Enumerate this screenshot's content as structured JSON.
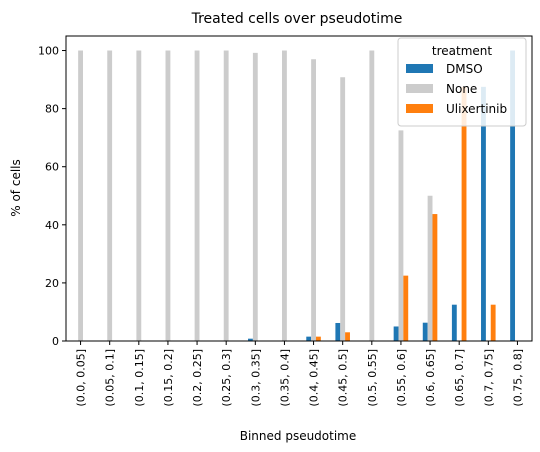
{
  "chart_data": {
    "type": "bar",
    "title": "Treated cells over pseudotime",
    "xlabel": "Binned pseudotime",
    "ylabel": "% of cells",
    "ylim": [
      0,
      105
    ],
    "yticks": [
      0,
      20,
      40,
      60,
      80,
      100
    ],
    "grid": false,
    "legend": {
      "title": "treatment",
      "placement": "top-right"
    },
    "categories": [
      "(0.0, 0.05]",
      "(0.05, 0.1]",
      "(0.1, 0.15]",
      "(0.15, 0.2]",
      "(0.2, 0.25]",
      "(0.25, 0.3]",
      "(0.3, 0.35]",
      "(0.35, 0.4]",
      "(0.4, 0.45]",
      "(0.45, 0.5]",
      "(0.5, 0.55]",
      "(0.55, 0.6]",
      "(0.6, 0.65]",
      "(0.65, 0.7]",
      "(0.7, 0.75]",
      "(0.75, 0.8]"
    ],
    "series": [
      {
        "name": "DMSO",
        "color": "#1f77b4",
        "values": [
          0,
          0,
          0,
          0,
          0,
          0,
          0.8,
          0,
          1.5,
          6.2,
          0,
          5.0,
          6.3,
          12.5,
          87.5,
          100
        ]
      },
      {
        "name": "None",
        "color": "#cccccc",
        "values": [
          100,
          100,
          100,
          100,
          100,
          100,
          99.2,
          100,
          97.0,
          90.8,
          100,
          72.5,
          50.0,
          0,
          0,
          0
        ]
      },
      {
        "name": "Ulixertinib",
        "color": "#ff7f0e",
        "values": [
          0,
          0,
          0,
          0,
          0,
          0,
          0,
          0,
          1.5,
          3.0,
          0,
          22.5,
          43.7,
          87.5,
          12.5,
          0
        ]
      }
    ]
  }
}
